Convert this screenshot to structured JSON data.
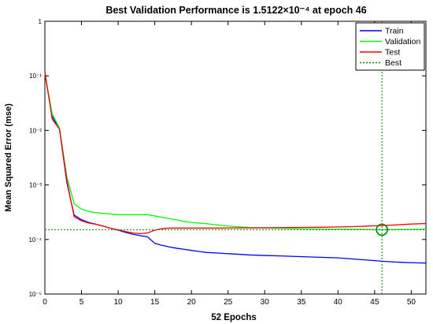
{
  "chart_data": {
    "type": "line",
    "title": "Best Validation Performance is 1.5122×10⁻⁴ at epoch 46",
    "xlabel": "52 Epochs",
    "ylabel": "Mean Squared Error  (mse)",
    "xlim": [
      0,
      52
    ],
    "ylim": [
      1e-05,
      1
    ],
    "yscale": "log",
    "xticks": [
      0,
      5,
      10,
      15,
      20,
      25,
      30,
      35,
      40,
      45,
      50
    ],
    "yticks": [
      {
        "value": 1,
        "label": "1"
      },
      {
        "value": 0.1,
        "label": "10⁻¹"
      },
      {
        "value": 0.01,
        "label": "10⁻²"
      },
      {
        "value": 0.001,
        "label": "10⁻³"
      },
      {
        "value": 0.0001,
        "label": "10⁻⁴"
      },
      {
        "value": 1e-05,
        "label": "10⁻⁵"
      }
    ],
    "grid": false,
    "legend_position": "top-right",
    "series": [
      {
        "name": "Train",
        "color": "#0000ff",
        "x": [
          0,
          1,
          2,
          3,
          4,
          5,
          6,
          7,
          8,
          9,
          10,
          11,
          12,
          13,
          14,
          15,
          16,
          17,
          18,
          19,
          20,
          22,
          24,
          26,
          28,
          30,
          32,
          34,
          36,
          38,
          40,
          42,
          44,
          46,
          48,
          50,
          52
        ],
        "y": [
          0.11,
          0.018,
          0.0105,
          0.0011,
          0.00028,
          0.00023,
          0.000205,
          0.00019,
          0.000175,
          0.00016,
          0.000148,
          0.000135,
          0.000125,
          0.000118,
          0.000112,
          8.5e-05,
          7.8e-05,
          7.3e-05,
          6.9e-05,
          6.6e-05,
          6.3e-05,
          5.8e-05,
          5.6e-05,
          5.4e-05,
          5.2e-05,
          5.1e-05,
          5e-05,
          4.9e-05,
          4.8e-05,
          4.7e-05,
          4.6e-05,
          4.4e-05,
          4.2e-05,
          4e-05,
          3.85e-05,
          3.75e-05,
          3.7e-05
        ]
      },
      {
        "name": "Validation",
        "color": "#00ff00",
        "x": [
          0,
          1,
          2,
          3,
          4,
          5,
          6,
          7,
          8,
          9,
          10,
          11,
          12,
          13,
          14,
          15,
          16,
          17,
          18,
          19,
          20,
          22,
          24,
          26,
          28,
          30,
          32,
          34,
          36,
          38,
          40,
          42,
          44,
          46,
          48,
          50,
          52
        ],
        "y": [
          0.11,
          0.02,
          0.011,
          0.0014,
          0.00045,
          0.00036,
          0.000325,
          0.00031,
          0.0003,
          0.000292,
          0.000285,
          0.000285,
          0.000285,
          0.000285,
          0.000285,
          0.00027,
          0.000255,
          0.00024,
          0.000228,
          0.000215,
          0.000205,
          0.000195,
          0.000182,
          0.000172,
          0.000166,
          0.000163,
          0.000161,
          0.000159,
          0.000157,
          0.000155,
          0.000154,
          0.000154,
          0.000153,
          0.00015122,
          0.000152,
          0.000153,
          0.000155
        ]
      },
      {
        "name": "Test",
        "color": "#ff0000",
        "x": [
          0,
          1,
          2,
          3,
          4,
          5,
          6,
          7,
          8,
          9,
          10,
          11,
          12,
          13,
          14,
          15,
          16,
          17,
          18,
          19,
          20,
          22,
          24,
          26,
          28,
          30,
          32,
          34,
          36,
          38,
          40,
          42,
          44,
          46,
          48,
          50,
          52
        ],
        "y": [
          0.12,
          0.016,
          0.0105,
          0.0012,
          0.00026,
          0.00022,
          0.0002,
          0.00019,
          0.000175,
          0.00016,
          0.00015,
          0.00014,
          0.000132,
          0.000128,
          0.000132,
          0.000148,
          0.000158,
          0.000162,
          0.000162,
          0.000162,
          0.000162,
          0.000162,
          0.000162,
          0.000163,
          0.000163,
          0.000164,
          0.000165,
          0.000166,
          0.000167,
          0.000168,
          0.00017,
          0.000172,
          0.000176,
          0.00018,
          0.000185,
          0.000192,
          0.000196
        ]
      }
    ],
    "best": {
      "name": "Best",
      "epoch": 46,
      "value": 0.00015122,
      "color": "#008000"
    }
  }
}
